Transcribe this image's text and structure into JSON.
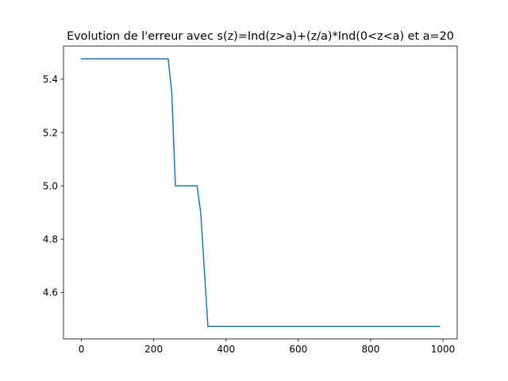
{
  "chart_data": {
    "type": "line",
    "title": "Evolution de l'erreur avec s(z)=Ind(z>a)+(z/a)*Ind(0<z<a) et a=20",
    "xlabel": "",
    "ylabel": "",
    "xlim": [
      -49.5,
      1039.5
    ],
    "ylim": [
      4.425,
      5.525
    ],
    "xticks": [
      0,
      200,
      400,
      600,
      800,
      1000
    ],
    "xtick_labels": [
      "0",
      "200",
      "400",
      "600",
      "800",
      "1000"
    ],
    "yticks": [
      4.6,
      4.8,
      5.0,
      5.2,
      5.4
    ],
    "ytick_labels": [
      "4.6",
      "4.8",
      "5.0",
      "5.2",
      "5.4"
    ],
    "grid": false,
    "series": [
      {
        "name": "",
        "color": "#1f77b4",
        "x": [
          0,
          240,
          250,
          260,
          320,
          330,
          350,
          990
        ],
        "y": [
          5.477,
          5.477,
          5.35,
          5.0,
          5.0,
          4.9,
          4.472,
          4.472
        ]
      }
    ]
  }
}
